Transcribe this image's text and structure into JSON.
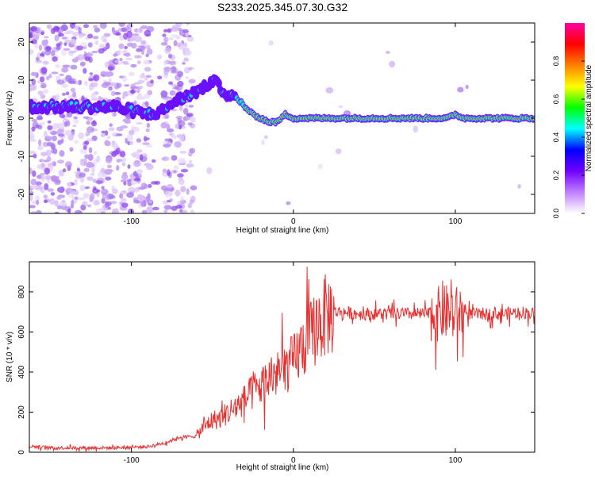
{
  "page_title": "S233.2025.345.07.30.G32",
  "chart_data": [
    {
      "type": "heatmap",
      "xlabel": "Height of straight line (km)",
      "ylabel": "Frequency (Hz)",
      "xlim": [
        -163,
        149
      ],
      "ylim": [
        -25,
        25
      ],
      "xticks": [
        -100,
        0,
        100
      ],
      "xtick_labels": [
        "-100",
        "0",
        "100"
      ],
      "yticks": [
        -20,
        -10,
        0,
        10,
        20
      ],
      "ytick_labels": [
        "-20",
        "-10",
        "0",
        "10",
        "20"
      ],
      "colorbar": {
        "label": "Normalized spectral amplitude",
        "range": [
          0,
          1
        ],
        "ticks": [
          0.0,
          0.2,
          0.4,
          0.6,
          0.8
        ],
        "tick_labels": [
          "0.0",
          "0.2",
          "0.4",
          "0.6",
          "0.8"
        ],
        "colors": [
          "#ffffff",
          "#c080ff",
          "#7000ff",
          "#0000ff",
          "#00ffff",
          "#00ff00",
          "#ffff00",
          "#ff8000",
          "#ff0000",
          "#ff00a0"
        ]
      },
      "ridge": {
        "x": [
          -163,
          -150,
          -130,
          -110,
          -100,
          -90,
          -80,
          -75,
          -70,
          -65,
          -60,
          -55,
          -50,
          -45,
          -40,
          -35,
          -30,
          -25,
          -20,
          -15,
          -10,
          -5,
          0,
          10,
          20,
          50,
          85,
          90,
          95,
          100,
          105,
          149
        ],
        "y": [
          3,
          3,
          3,
          3,
          2,
          1,
          2,
          4,
          5,
          6,
          7,
          8,
          10,
          8,
          6,
          5,
          3,
          1,
          0,
          -1,
          -1,
          1,
          0,
          0,
          0,
          0,
          0,
          0,
          0,
          1,
          0,
          0
        ]
      }
    },
    {
      "type": "line",
      "xlabel": "Height of straight line (km)",
      "ylabel": "SNR (10 * v/v)",
      "xlim": [
        -163,
        149
      ],
      "ylim": [
        0,
        950
      ],
      "xticks": [
        -100,
        0,
        100
      ],
      "xtick_labels": [
        "-100",
        "0",
        "100"
      ],
      "yticks": [
        0,
        200,
        400,
        600,
        800
      ],
      "ytick_labels": [
        "0",
        "200",
        "400",
        "600",
        "800"
      ],
      "color": "#e83030",
      "series": [
        {
          "name": "SNR",
          "x": [
            -163,
            -150,
            -130,
            -110,
            -90,
            -80,
            -70,
            -60,
            -55,
            -50,
            -45,
            -40,
            -35,
            -30,
            -25,
            -20,
            -15,
            -10,
            -5,
            0,
            5,
            10,
            15,
            20,
            25,
            30,
            40,
            50,
            60,
            70,
            80,
            90,
            95,
            100,
            105,
            110,
            120,
            130,
            140,
            149
          ],
          "y": [
            30,
            22,
            22,
            22,
            28,
            45,
            75,
            80,
            130,
            160,
            170,
            200,
            230,
            260,
            300,
            330,
            370,
            390,
            420,
            450,
            520,
            570,
            640,
            680,
            700,
            700,
            690,
            690,
            690,
            690,
            690,
            690,
            700,
            690,
            700,
            690,
            690,
            690,
            700,
            690
          ]
        }
      ]
    }
  ]
}
